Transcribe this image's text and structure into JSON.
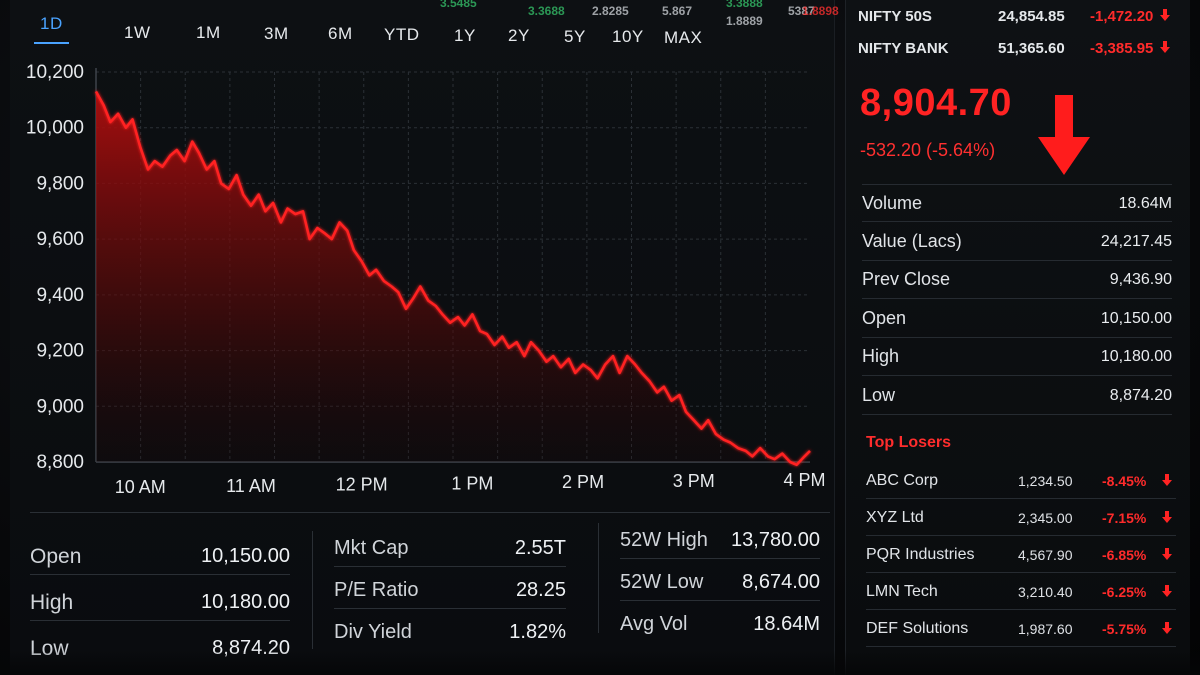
{
  "ticker_strip": [
    {
      "text": "3.5485",
      "color": "#35c46b"
    },
    {
      "text": "3.3688",
      "color": "#35c46b"
    },
    {
      "text": "2.8285",
      "color": "#cfd3d8"
    },
    {
      "text": "5.867",
      "color": "#cfd3d8"
    },
    {
      "text": "3.3888",
      "color": "#35c46b"
    },
    {
      "text": "1.8889",
      "color": "#cfd3d8"
    },
    {
      "text": "5387",
      "color": "#cfd3d8"
    },
    {
      "text": "1.8898",
      "color": "#ff3030"
    }
  ],
  "range_tabs": [
    "1D",
    "1W",
    "1M",
    "3M",
    "6M",
    "YTD",
    "1Y",
    "2Y",
    "5Y",
    "10Y",
    "MAX"
  ],
  "active_tab": "1D",
  "chart_data": {
    "type": "area",
    "title": "",
    "xlabel": "",
    "ylabel": "",
    "x_ticks": [
      "10 AM",
      "11 AM",
      "12 PM",
      "1 PM",
      "2 PM",
      "3 PM",
      "4 PM"
    ],
    "y_ticks": [
      "10,200",
      "10,000",
      "9,800",
      "9,600",
      "9,400",
      "9,200",
      "9,000",
      "8,800"
    ],
    "ylim": [
      8800,
      10200
    ],
    "x_range": [
      9.6,
      16.05
    ],
    "grid": true,
    "line_color": "#ff2020",
    "fill_color": "#b00e0e",
    "series": [
      {
        "x": [
          9.6,
          9.67,
          9.73,
          9.8,
          9.87,
          9.93,
          10.0,
          10.07,
          10.13,
          10.2,
          10.27,
          10.33,
          10.4,
          10.47,
          10.53,
          10.6,
          10.67,
          10.73,
          10.8,
          10.87,
          10.93,
          11.0,
          11.07,
          11.13,
          11.2,
          11.27,
          11.33,
          11.4,
          11.47,
          11.53,
          11.6,
          11.67,
          11.73,
          11.8,
          11.87,
          11.93,
          12.0,
          12.07,
          12.13,
          12.2,
          12.27,
          12.33,
          12.4,
          12.47,
          12.53,
          12.6,
          12.67,
          12.73,
          12.8,
          12.87,
          12.93,
          13.0,
          13.07,
          13.13,
          13.2,
          13.27,
          13.33,
          13.4,
          13.47,
          13.53,
          13.6,
          13.67,
          13.73,
          13.8,
          13.87,
          13.93,
          14.0,
          14.07,
          14.13,
          14.2,
          14.27,
          14.33,
          14.4,
          14.47,
          14.53,
          14.6,
          14.67,
          14.73,
          14.8,
          14.87,
          14.93,
          15.0,
          15.07,
          15.13,
          15.2,
          15.27,
          15.33,
          15.4,
          15.47,
          15.53,
          15.6,
          15.67,
          15.73,
          15.8,
          15.87,
          15.93,
          16.0,
          16.05
        ],
        "y": [
          10130,
          10080,
          10020,
          10050,
          10000,
          10030,
          9930,
          9850,
          9880,
          9860,
          9900,
          9920,
          9880,
          9950,
          9910,
          9850,
          9880,
          9800,
          9780,
          9830,
          9760,
          9720,
          9760,
          9700,
          9730,
          9660,
          9710,
          9690,
          9700,
          9600,
          9640,
          9620,
          9600,
          9660,
          9630,
          9560,
          9520,
          9470,
          9490,
          9450,
          9430,
          9410,
          9350,
          9390,
          9430,
          9380,
          9360,
          9330,
          9300,
          9320,
          9290,
          9330,
          9270,
          9260,
          9220,
          9250,
          9210,
          9230,
          9180,
          9230,
          9200,
          9160,
          9180,
          9140,
          9170,
          9120,
          9150,
          9130,
          9100,
          9150,
          9180,
          9120,
          9180,
          9150,
          9120,
          9090,
          9050,
          9070,
          9020,
          9040,
          8980,
          8950,
          8920,
          8950,
          8900,
          8880,
          8870,
          8850,
          8840,
          8820,
          8850,
          8820,
          8810,
          8830,
          8800,
          8790,
          8820,
          8840
        ]
      }
    ]
  },
  "stats": {
    "columns": [
      [
        {
          "label": "Open",
          "value": "10,150.00"
        },
        {
          "label": "High",
          "value": "10,180.00"
        },
        {
          "label": "Low",
          "value": "8,874.20"
        }
      ],
      [
        {
          "label": "Mkt Cap",
          "value": "2.55T"
        },
        {
          "label": "P/E Ratio",
          "value": "28.25"
        },
        {
          "label": "Div Yield",
          "value": "1.82%"
        }
      ],
      [
        {
          "label": "52W High",
          "value": "13,780.00"
        },
        {
          "label": "52W Low",
          "value": "8,674.00"
        },
        {
          "label": "Avg Vol",
          "value": "18.64M"
        }
      ]
    ]
  },
  "indices": [
    {
      "name": "NIFTY 50S",
      "value": "24,854.85",
      "change": "-1,472.20"
    },
    {
      "name": "NIFTY BANK",
      "value": "51,365.60",
      "change": "-3,385.95"
    }
  ],
  "quote": {
    "last_price": "8,904.70",
    "change": "-532.20 (-5.64%)",
    "rows": [
      {
        "label": "Volume",
        "value": "18.64M"
      },
      {
        "label": "Value (Lacs)",
        "value": "24,217.45"
      },
      {
        "label": "Prev Close",
        "value": "9,436.90"
      },
      {
        "label": "Open",
        "value": "10,150.00"
      },
      {
        "label": "High",
        "value": "10,180.00"
      },
      {
        "label": "Low",
        "value": "8,874.20"
      }
    ]
  },
  "top_losers": {
    "title": "Top Losers",
    "rows": [
      {
        "name": "ABC Corp",
        "price": "1,234.50",
        "pct": "-8.45%"
      },
      {
        "name": "XYZ Ltd",
        "price": "2,345.00",
        "pct": "-7.15%"
      },
      {
        "name": "PQR Industries",
        "price": "4,567.90",
        "pct": "-6.85%"
      },
      {
        "name": "LMN Tech",
        "price": "3,210.40",
        "pct": "-6.25%"
      },
      {
        "name": "DEF Solutions",
        "price": "1,987.60",
        "pct": "-5.75%"
      }
    ]
  },
  "colors": {
    "down": "#ff2b2b",
    "up": "#35c46b",
    "accent": "#4aa3ff"
  }
}
